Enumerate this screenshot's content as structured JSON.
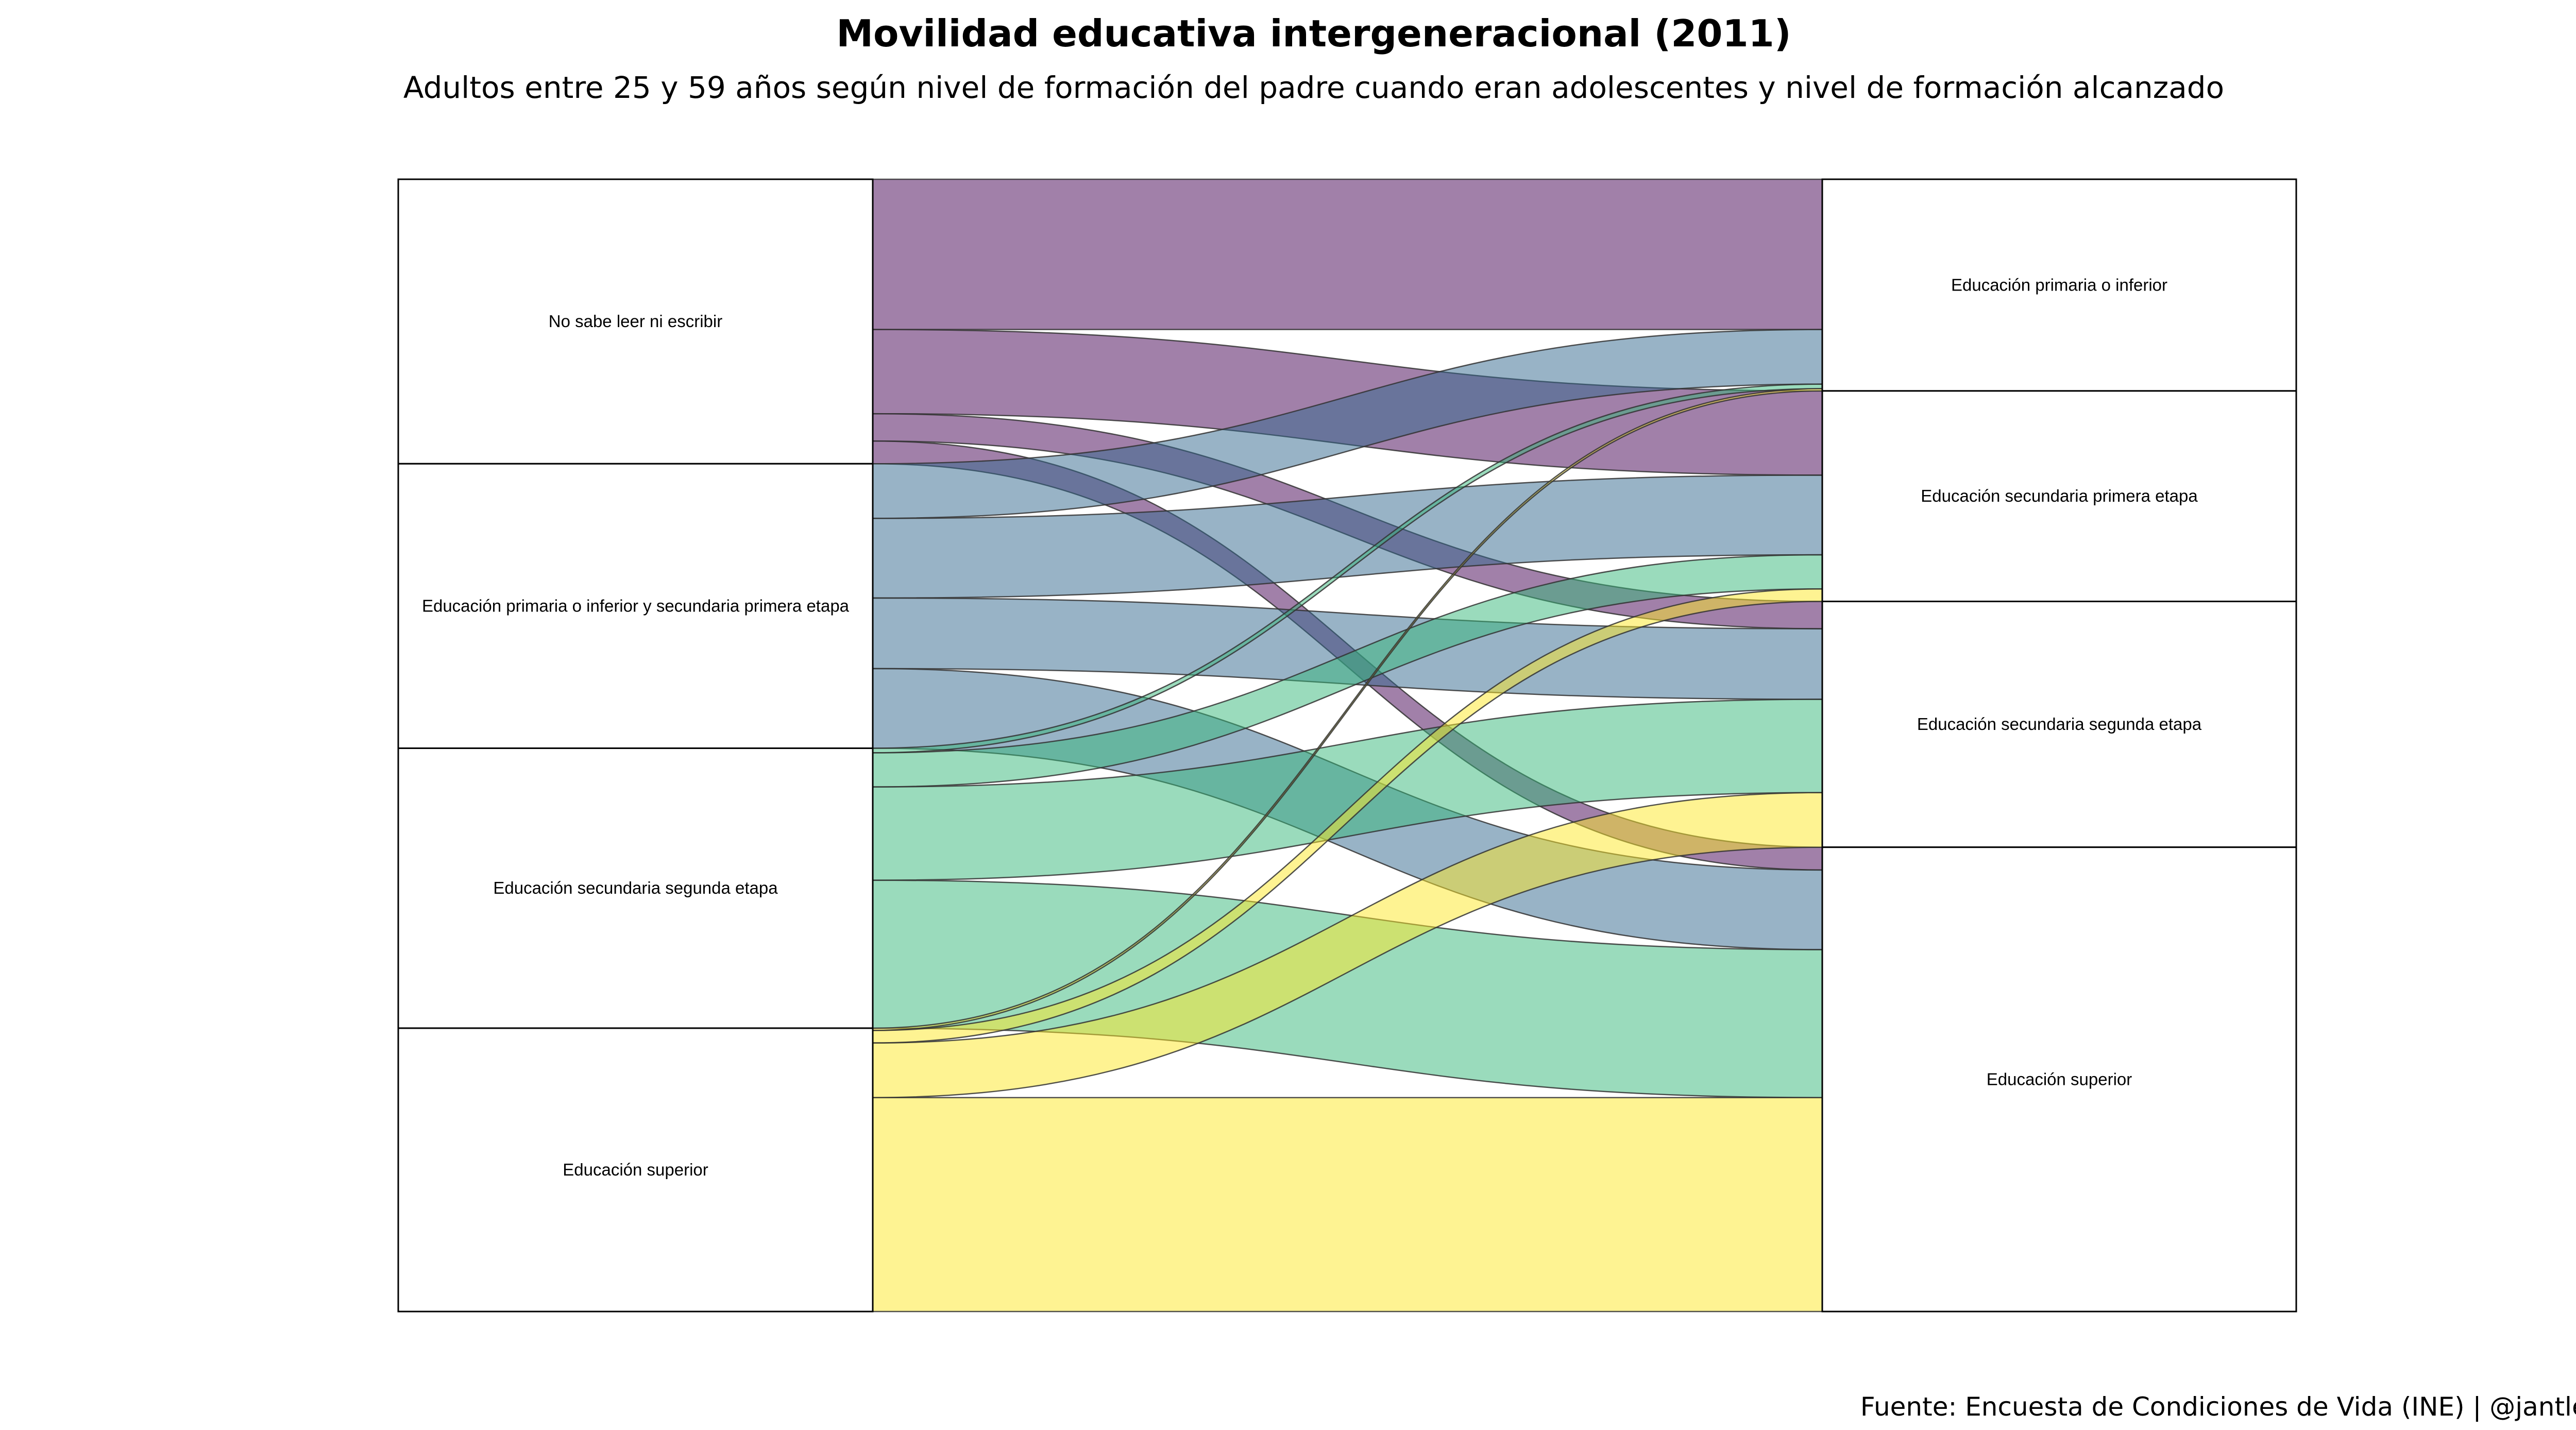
{
  "chart_data": {
    "type": "alluvial",
    "title": "Movilidad educativa intergeneracional (2011)",
    "subtitle": "Adultos entre 25 y 59 años según nivel de formación del padre cuando eran adolescentes y nivel de formación alcanzado",
    "caption": "Fuente: Encuesta de Condiciones de Vida (INE) | @jantleon",
    "axes": [
      {
        "strata": [
          "No sabe leer ni escribir",
          "Educación primaria o inferior y secundaria primera etapa",
          "Educación secundaria  segunda etapa",
          "Educación  superior"
        ]
      },
      {
        "strata": [
          "Educación primaria o inferior",
          "Educación secundaria primera etapa",
          "Educación secundaria segunda etapa",
          "Educación superior"
        ]
      }
    ],
    "flow_colors": [
      "#440154",
      "#31688e",
      "#35b779",
      "#fde725"
    ],
    "flows": [
      {
        "from": 0,
        "to": 0,
        "value": 13.2
      },
      {
        "from": 0,
        "to": 1,
        "value": 7.4
      },
      {
        "from": 0,
        "to": 2,
        "value": 2.4
      },
      {
        "from": 0,
        "to": 3,
        "value": 2.0
      },
      {
        "from": 1,
        "to": 0,
        "value": 4.8
      },
      {
        "from": 1,
        "to": 1,
        "value": 7.0
      },
      {
        "from": 1,
        "to": 2,
        "value": 6.2
      },
      {
        "from": 1,
        "to": 3,
        "value": 7.0
      },
      {
        "from": 2,
        "to": 0,
        "value": 0.4
      },
      {
        "from": 2,
        "to": 1,
        "value": 3.0
      },
      {
        "from": 2,
        "to": 2,
        "value": 8.2
      },
      {
        "from": 2,
        "to": 3,
        "value": 13.0
      },
      {
        "from": 3,
        "to": 0,
        "value": 0.2
      },
      {
        "from": 3,
        "to": 1,
        "value": 1.1
      },
      {
        "from": 3,
        "to": 2,
        "value": 4.8
      },
      {
        "from": 3,
        "to": 3,
        "value": 18.8
      }
    ]
  }
}
